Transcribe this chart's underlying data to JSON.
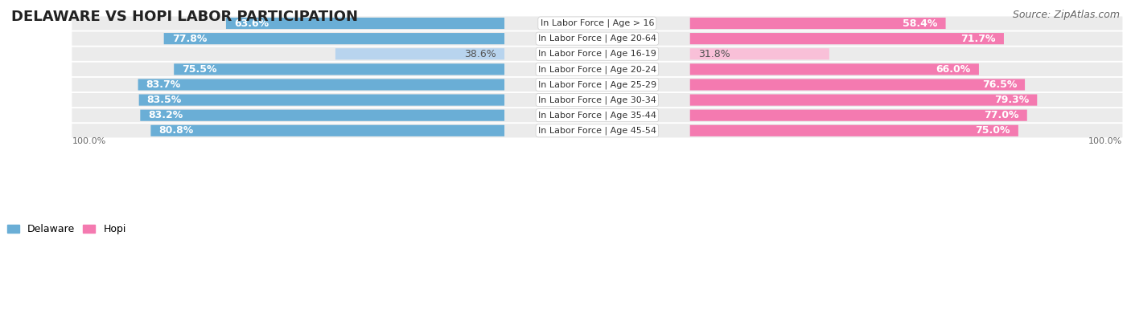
{
  "title": "DELAWARE VS HOPI LABOR PARTICIPATION",
  "source": "Source: ZipAtlas.com",
  "categories": [
    "In Labor Force | Age > 16",
    "In Labor Force | Age 20-64",
    "In Labor Force | Age 16-19",
    "In Labor Force | Age 20-24",
    "In Labor Force | Age 25-29",
    "In Labor Force | Age 30-34",
    "In Labor Force | Age 35-44",
    "In Labor Force | Age 45-54"
  ],
  "delaware_values": [
    63.6,
    77.8,
    38.6,
    75.5,
    83.7,
    83.5,
    83.2,
    80.8
  ],
  "hopi_values": [
    58.4,
    71.7,
    31.8,
    66.0,
    76.5,
    79.3,
    77.0,
    75.0
  ],
  "delaware_color": "#6aaed6",
  "delaware_color_light": "#b8d4ee",
  "hopi_color": "#f47ab0",
  "hopi_color_light": "#f9c0d8",
  "bg_color": "#ffffff",
  "row_bg_odd": "#f2f2f2",
  "row_bg_even": "#e8e8e8",
  "title_fontsize": 13,
  "source_fontsize": 9,
  "label_fontsize": 9,
  "cat_fontsize": 8
}
